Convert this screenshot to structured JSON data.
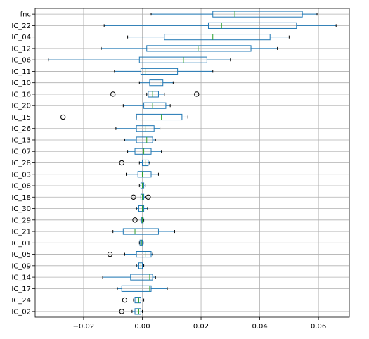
{
  "chart_data": {
    "type": "boxplot",
    "orientation": "horizontal",
    "title": "",
    "xlabel": "",
    "ylabel": "",
    "xlim": [
      -0.0365,
      0.0705
    ],
    "x_ticks": [
      -0.02,
      0.0,
      0.02,
      0.04,
      0.06
    ],
    "x_tick_labels": [
      "−0.02",
      "0.00",
      "0.02",
      "0.04",
      "0.06"
    ],
    "grid": true,
    "box_color": "#1f77b4",
    "median_color": "#2ca02c",
    "categories": [
      "fnc",
      "IC_22",
      "IC_04",
      "IC_12",
      "IC_06",
      "IC_11",
      "IC_10",
      "IC_16",
      "IC_20",
      "IC_15",
      "IC_26",
      "IC_13",
      "IC_07",
      "IC_28",
      "IC_03",
      "IC_08",
      "IC_18",
      "IC_30",
      "IC_29",
      "IC_21",
      "IC_01",
      "IC_05",
      "IC_09",
      "IC_14",
      "IC_17",
      "IC_24",
      "IC_02"
    ],
    "boxes": [
      {
        "label": "fnc",
        "whislo": 0.003,
        "q1": 0.024,
        "med": 0.0315,
        "q3": 0.0545,
        "whishi": 0.0595,
        "fliers": []
      },
      {
        "label": "IC_22",
        "whislo": -0.013,
        "q1": 0.0225,
        "med": 0.027,
        "q3": 0.0525,
        "whishi": 0.066,
        "fliers": []
      },
      {
        "label": "IC_04",
        "whislo": -0.005,
        "q1": 0.0075,
        "med": 0.024,
        "q3": 0.0435,
        "whishi": 0.05,
        "fliers": []
      },
      {
        "label": "IC_12",
        "whislo": -0.014,
        "q1": 0.0015,
        "med": 0.019,
        "q3": 0.037,
        "whishi": 0.046,
        "fliers": []
      },
      {
        "label": "IC_06",
        "whislo": -0.032,
        "q1": -0.001,
        "med": 0.014,
        "q3": 0.022,
        "whishi": 0.03,
        "fliers": []
      },
      {
        "label": "IC_11",
        "whislo": -0.0095,
        "q1": -0.0005,
        "med": 0.001,
        "q3": 0.012,
        "whishi": 0.024,
        "fliers": []
      },
      {
        "label": "IC_10",
        "whislo": -0.001,
        "q1": 0.0025,
        "med": 0.006,
        "q3": 0.007,
        "whishi": 0.0105,
        "fliers": []
      },
      {
        "label": "IC_16",
        "whislo": 0.0015,
        "q1": 0.002,
        "med": 0.0035,
        "q3": 0.0055,
        "whishi": 0.0075,
        "fliers": [
          -0.01,
          0.0185
        ]
      },
      {
        "label": "IC_20",
        "whislo": -0.0065,
        "q1": 0.0005,
        "med": 0.0035,
        "q3": 0.008,
        "whishi": 0.0095,
        "fliers": []
      },
      {
        "label": "IC_15",
        "whislo": -0.002,
        "q1": -0.002,
        "med": 0.0065,
        "q3": 0.0135,
        "whishi": 0.0155,
        "fliers": [
          -0.027
        ]
      },
      {
        "label": "IC_26",
        "whislo": -0.009,
        "q1": -0.002,
        "med": 0.001,
        "q3": 0.004,
        "whishi": 0.006,
        "fliers": []
      },
      {
        "label": "IC_13",
        "whislo": -0.006,
        "q1": -0.002,
        "med": 0.0015,
        "q3": 0.0035,
        "whishi": 0.0045,
        "fliers": []
      },
      {
        "label": "IC_07",
        "whislo": -0.005,
        "q1": -0.0025,
        "med": 0.0005,
        "q3": 0.003,
        "whishi": 0.0065,
        "fliers": []
      },
      {
        "label": "IC_28",
        "whislo": -0.001,
        "q1": 0.0,
        "med": 0.001,
        "q3": 0.002,
        "whishi": 0.0025,
        "fliers": [
          -0.007
        ]
      },
      {
        "label": "IC_03",
        "whislo": -0.0055,
        "q1": -0.0015,
        "med": 0.0,
        "q3": 0.003,
        "whishi": 0.0055,
        "fliers": []
      },
      {
        "label": "IC_08",
        "whislo": -0.001,
        "q1": -0.0005,
        "med": 0.0,
        "q3": 0.0005,
        "whishi": 0.001,
        "fliers": []
      },
      {
        "label": "IC_18",
        "whislo": -0.0005,
        "q1": -0.0005,
        "med": 0.0,
        "q3": 0.0005,
        "whishi": 0.001,
        "fliers": [
          -0.003,
          0.002
        ]
      },
      {
        "label": "IC_30",
        "whislo": -0.002,
        "q1": -0.0012,
        "med": 0.0,
        "q3": 0.0005,
        "whishi": 0.0018,
        "fliers": []
      },
      {
        "label": "IC_29",
        "whislo": -0.0005,
        "q1": -0.0002,
        "med": 0.0,
        "q3": 0.0003,
        "whishi": 0.0005,
        "fliers": [
          -0.0025
        ]
      },
      {
        "label": "IC_21",
        "whislo": -0.01,
        "q1": -0.0065,
        "med": -0.0025,
        "q3": 0.0055,
        "whishi": 0.011,
        "fliers": []
      },
      {
        "label": "IC_01",
        "whislo": -0.001,
        "q1": -0.0008,
        "med": -0.0003,
        "q3": 0.0,
        "whishi": 0.0003,
        "fliers": []
      },
      {
        "label": "IC_05",
        "whislo": -0.006,
        "q1": -0.002,
        "med": 0.001,
        "q3": 0.003,
        "whishi": 0.0035,
        "fliers": [
          -0.011
        ]
      },
      {
        "label": "IC_09",
        "whislo": -0.002,
        "q1": -0.0012,
        "med": -0.0005,
        "q3": 0.0,
        "whishi": 0.0005,
        "fliers": []
      },
      {
        "label": "IC_14",
        "whislo": -0.0135,
        "q1": -0.004,
        "med": 0.0025,
        "q3": 0.0035,
        "whishi": 0.0045,
        "fliers": []
      },
      {
        "label": "IC_17",
        "whislo": -0.0085,
        "q1": -0.007,
        "med": 0.0025,
        "q3": 0.003,
        "whishi": 0.0085,
        "fliers": []
      },
      {
        "label": "IC_24",
        "whislo": -0.003,
        "q1": -0.0025,
        "med": -0.0012,
        "q3": -0.0005,
        "whishi": 0.0005,
        "fliers": [
          -0.006
        ]
      },
      {
        "label": "IC_02",
        "whislo": -0.0035,
        "q1": -0.0025,
        "med": -0.0012,
        "q3": -0.0005,
        "whishi": 0.0,
        "fliers": [
          -0.007
        ]
      }
    ]
  }
}
